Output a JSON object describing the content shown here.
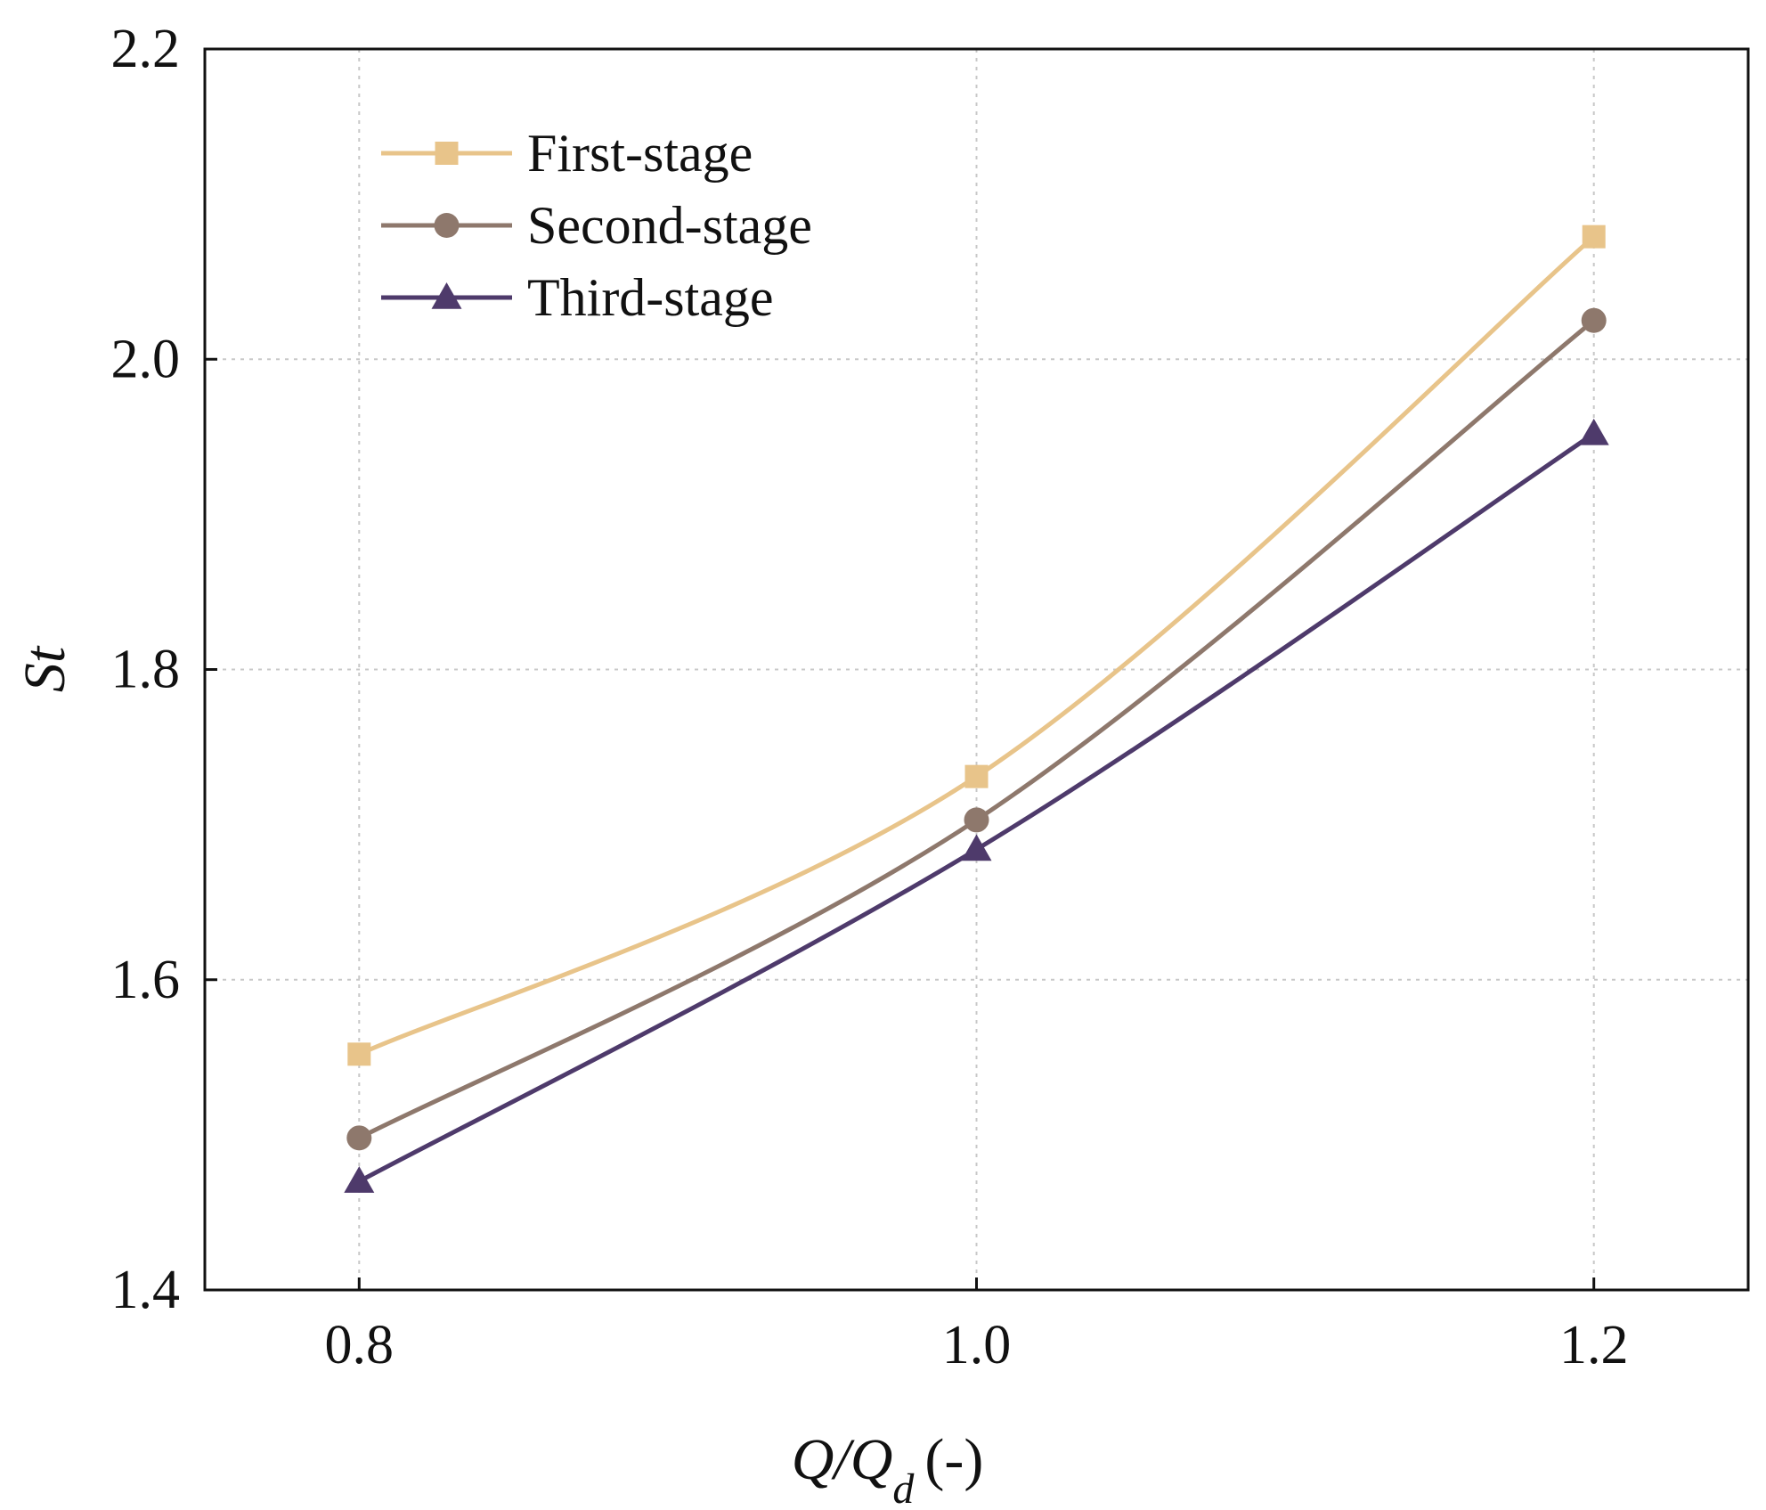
{
  "chart_data": {
    "type": "line",
    "title": "",
    "xlabel_main": "Q/Q",
    "xlabel_sub": "d",
    "xlabel_unit": "(-)",
    "ylabel": "St",
    "x": [
      0.8,
      1.0,
      1.2
    ],
    "x_tick_labels": [
      "0.8",
      "1.0",
      "1.2"
    ],
    "xlim": [
      0.75,
      1.25
    ],
    "ylim": [
      1.4,
      2.2
    ],
    "y_ticks": [
      1.4,
      1.6,
      1.8,
      2.0,
      2.2
    ],
    "y_tick_labels": [
      "1.4",
      "1.6",
      "1.8",
      "2.0",
      "2.2"
    ],
    "grid": true,
    "legend_position": "top-left",
    "series": [
      {
        "name": "First-stage",
        "marker": "square",
        "color": "#E8C48A",
        "values": [
          1.552,
          1.731,
          2.079
        ]
      },
      {
        "name": "Second-stage",
        "marker": "circle",
        "color": "#8E786C",
        "values": [
          1.498,
          1.703,
          2.025
        ]
      },
      {
        "name": "Third-stage",
        "marker": "triangle",
        "color": "#4E3A6B",
        "values": [
          1.47,
          1.684,
          1.952
        ]
      }
    ]
  }
}
